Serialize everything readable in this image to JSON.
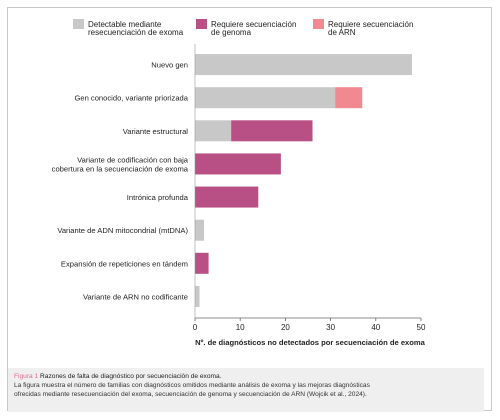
{
  "chart_data": {
    "type": "bar",
    "orientation": "horizontal",
    "stacked": true,
    "categories": [
      [
        "Nuevo gen"
      ],
      [
        "Gen conocido, variante priorizada"
      ],
      [
        "Variante estructural"
      ],
      [
        "Variante de codificación con baja",
        "cobertura en la secuenciación de exoma"
      ],
      [
        "Intrónica profunda"
      ],
      [
        "Variante de ADN mitocondrial (mtDNA)"
      ],
      [
        "Expansión de repeticiones en tándem"
      ],
      [
        "Variante de ARN no codificante"
      ]
    ],
    "series": [
      {
        "name": [
          "Detectable mediante",
          "resecuenciación de exoma"
        ],
        "color": "#c8c8c8",
        "values": [
          48,
          31,
          8,
          0,
          0,
          2,
          0,
          1
        ]
      },
      {
        "name": [
          "Requiere secuenciación",
          "de genoma"
        ],
        "color": "#b84f85",
        "values": [
          0,
          0,
          18,
          19,
          14,
          0,
          3,
          0
        ]
      },
      {
        "name": [
          "Requiere secuenciación",
          "de ARN"
        ],
        "color": "#f08a90",
        "values": [
          0,
          6,
          0,
          0,
          0,
          0,
          0,
          0
        ]
      }
    ],
    "xlim": [
      0,
      50
    ],
    "xticks": [
      0,
      10,
      20,
      30,
      40,
      50
    ],
    "xlabel": "Nº. de diagnósticos no detectados por secuenciación de exoma",
    "legend_position": "top",
    "grid": false
  },
  "caption": {
    "figure_label": "Figura 1",
    "title": "Razones de falta de diagnóstico por secuenciación de exoma.",
    "body_line1": "La figura muestra el número de familias con diagnósticos omitidos mediante análisis de exoma y las mejoras diagnósticas",
    "body_line2": "ofrecidas mediante resecuenciación del exoma, secuenciación de genoma y secuenciación de ARN (Wojcik et al., 2024)."
  }
}
